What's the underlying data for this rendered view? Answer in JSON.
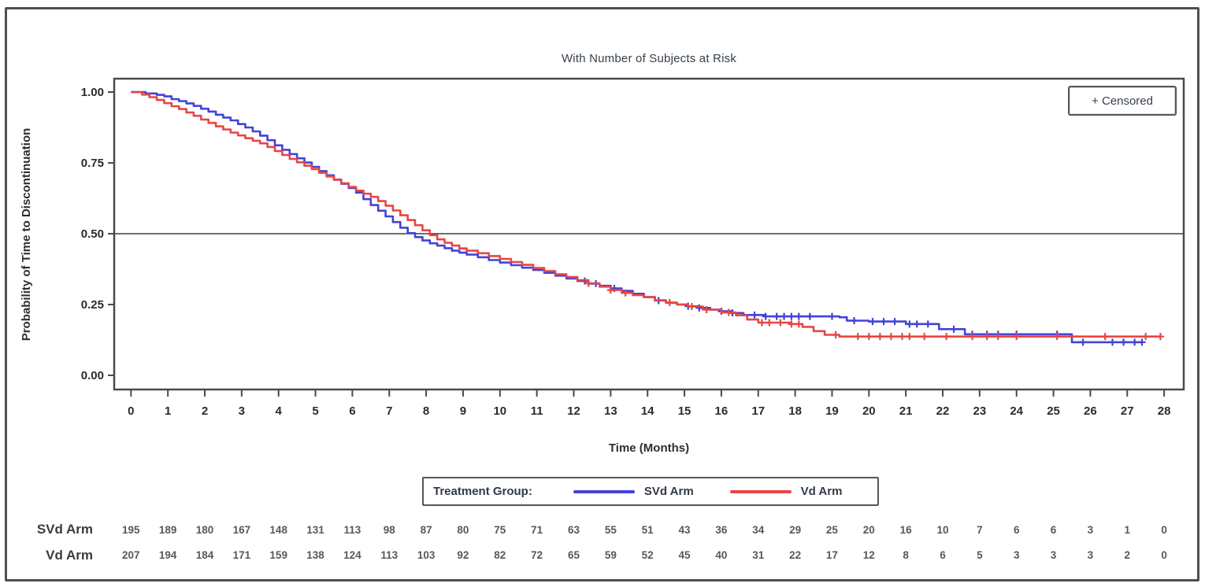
{
  "title": "With Number of Subjects at Risk",
  "censored_label": "+ Censored",
  "legend": {
    "label": "Treatment Group:",
    "entries": [
      {
        "name": "SVd Arm",
        "color": "#4343d6"
      },
      {
        "name": "Vd Arm",
        "color": "#e64646"
      }
    ]
  },
  "colors": {
    "svd_arm": "#4343d6",
    "vd_arm": "#e64646",
    "axis": "#4a4a4a",
    "tick_text": "#2b2b2b",
    "risk_text": "#585858"
  },
  "chart_data": {
    "type": "line",
    "subtype": "kaplan-meier-step",
    "title": "With Number of Subjects at Risk",
    "xlabel": "Time (Months)",
    "ylabel": "Probability of Time to Discontinuation",
    "xlim": [
      0,
      28
    ],
    "ylim": [
      0.0,
      1.0
    ],
    "grid": false,
    "reference_line_y": 0.5,
    "xticks": [
      0,
      1,
      2,
      3,
      4,
      5,
      6,
      7,
      8,
      9,
      10,
      11,
      12,
      13,
      14,
      15,
      16,
      17,
      18,
      19,
      20,
      21,
      22,
      23,
      24,
      25,
      26,
      27,
      28
    ],
    "yticks": [
      {
        "v": 0.0,
        "label": "0.00"
      },
      {
        "v": 0.25,
        "label": "0.25"
      },
      {
        "v": 0.5,
        "label": "0.50"
      },
      {
        "v": 0.75,
        "label": "0.75"
      },
      {
        "v": 1.0,
        "label": "1.00"
      }
    ],
    "legend_position": "bottom",
    "series": [
      {
        "name": "SVd Arm",
        "color": "#4343d6",
        "points": [
          [
            0,
            1
          ],
          [
            0.4,
            0.995
          ],
          [
            0.7,
            0.99
          ],
          [
            0.9,
            0.985
          ],
          [
            1.1,
            0.975
          ],
          [
            1.3,
            0.968
          ],
          [
            1.5,
            0.96
          ],
          [
            1.7,
            0.951
          ],
          [
            1.9,
            0.941
          ],
          [
            2.1,
            0.931
          ],
          [
            2.3,
            0.92
          ],
          [
            2.5,
            0.91
          ],
          [
            2.7,
            0.9
          ],
          [
            2.9,
            0.887
          ],
          [
            3.1,
            0.875
          ],
          [
            3.3,
            0.861
          ],
          [
            3.5,
            0.846
          ],
          [
            3.7,
            0.83
          ],
          [
            3.9,
            0.812
          ],
          [
            4.1,
            0.796
          ],
          [
            4.3,
            0.781
          ],
          [
            4.5,
            0.766
          ],
          [
            4.7,
            0.751
          ],
          [
            4.9,
            0.736
          ],
          [
            5.1,
            0.721
          ],
          [
            5.3,
            0.706
          ],
          [
            5.5,
            0.691
          ],
          [
            5.7,
            0.676
          ],
          [
            5.9,
            0.661
          ],
          [
            6.1,
            0.645
          ],
          [
            6.3,
            0.622
          ],
          [
            6.5,
            0.601
          ],
          [
            6.7,
            0.581
          ],
          [
            6.9,
            0.561
          ],
          [
            7.1,
            0.541
          ],
          [
            7.3,
            0.521
          ],
          [
            7.5,
            0.502
          ],
          [
            7.7,
            0.488
          ],
          [
            7.9,
            0.476
          ],
          [
            8.1,
            0.466
          ],
          [
            8.3,
            0.458
          ],
          [
            8.5,
            0.449
          ],
          [
            8.7,
            0.44
          ],
          [
            8.9,
            0.433
          ],
          [
            9.1,
            0.426
          ],
          [
            9.4,
            0.417
          ],
          [
            9.7,
            0.407
          ],
          [
            10,
            0.398
          ],
          [
            10.3,
            0.389
          ],
          [
            10.6,
            0.38
          ],
          [
            10.9,
            0.372
          ],
          [
            11.2,
            0.362
          ],
          [
            11.5,
            0.352
          ],
          [
            11.8,
            0.342
          ],
          [
            12.1,
            0.333
          ],
          [
            12.4,
            0.324
          ],
          [
            12.7,
            0.316
          ],
          [
            13,
            0.307
          ],
          [
            13.3,
            0.298
          ],
          [
            13.6,
            0.288
          ],
          [
            13.9,
            0.276
          ],
          [
            14.2,
            0.264
          ],
          [
            14.5,
            0.256
          ],
          [
            14.8,
            0.25
          ],
          [
            15.1,
            0.244
          ],
          [
            15.4,
            0.238
          ],
          [
            15.7,
            0.232
          ],
          [
            16,
            0.226
          ],
          [
            16.3,
            0.22
          ],
          [
            16.6,
            0.213
          ],
          [
            17.2,
            0.208
          ],
          [
            19.2,
            0.205
          ],
          [
            19.4,
            0.193
          ],
          [
            20,
            0.19
          ],
          [
            21,
            0.181
          ],
          [
            21.9,
            0.163
          ],
          [
            22.6,
            0.145
          ],
          [
            25.4,
            0.145
          ],
          [
            25.5,
            0.117
          ],
          [
            27.4,
            0.117
          ]
        ],
        "censor_times": [
          12.3,
          12.6,
          13.1,
          14.3,
          15.1,
          15.4,
          16.0,
          16.3,
          16.9,
          17.2,
          17.5,
          17.7,
          17.9,
          18.1,
          18.4,
          19.0,
          19.6,
          20.1,
          20.4,
          20.7,
          21.1,
          21.3,
          21.6,
          22.3,
          22.8,
          23.2,
          23.5,
          24.0,
          25.1,
          25.8,
          26.6,
          26.9,
          27.2,
          27.4
        ]
      },
      {
        "name": "Vd Arm",
        "color": "#e64646",
        "points": [
          [
            0,
            1
          ],
          [
            0.3,
            0.991
          ],
          [
            0.5,
            0.982
          ],
          [
            0.7,
            0.972
          ],
          [
            0.9,
            0.961
          ],
          [
            1.1,
            0.95
          ],
          [
            1.3,
            0.94
          ],
          [
            1.5,
            0.928
          ],
          [
            1.7,
            0.916
          ],
          [
            1.9,
            0.903
          ],
          [
            2.1,
            0.891
          ],
          [
            2.3,
            0.879
          ],
          [
            2.5,
            0.868
          ],
          [
            2.7,
            0.857
          ],
          [
            2.9,
            0.847
          ],
          [
            3.1,
            0.837
          ],
          [
            3.3,
            0.828
          ],
          [
            3.5,
            0.819
          ],
          [
            3.7,
            0.806
          ],
          [
            3.9,
            0.792
          ],
          [
            4.1,
            0.778
          ],
          [
            4.3,
            0.764
          ],
          [
            4.5,
            0.752
          ],
          [
            4.7,
            0.74
          ],
          [
            4.9,
            0.728
          ],
          [
            5.1,
            0.715
          ],
          [
            5.3,
            0.702
          ],
          [
            5.5,
            0.69
          ],
          [
            5.7,
            0.678
          ],
          [
            5.9,
            0.665
          ],
          [
            6.1,
            0.652
          ],
          [
            6.3,
            0.641
          ],
          [
            6.5,
            0.63
          ],
          [
            6.7,
            0.615
          ],
          [
            6.9,
            0.599
          ],
          [
            7.1,
            0.582
          ],
          [
            7.3,
            0.565
          ],
          [
            7.5,
            0.548
          ],
          [
            7.7,
            0.53
          ],
          [
            7.9,
            0.512
          ],
          [
            8.1,
            0.495
          ],
          [
            8.3,
            0.48
          ],
          [
            8.5,
            0.468
          ],
          [
            8.7,
            0.458
          ],
          [
            8.9,
            0.448
          ],
          [
            9.1,
            0.44
          ],
          [
            9.4,
            0.431
          ],
          [
            9.7,
            0.421
          ],
          [
            10,
            0.411
          ],
          [
            10.3,
            0.4
          ],
          [
            10.6,
            0.39
          ],
          [
            10.9,
            0.379
          ],
          [
            11.2,
            0.368
          ],
          [
            11.5,
            0.357
          ],
          [
            11.8,
            0.347
          ],
          [
            12.1,
            0.336
          ],
          [
            12.4,
            0.325
          ],
          [
            12.7,
            0.313
          ],
          [
            13,
            0.301
          ],
          [
            13.3,
            0.291
          ],
          [
            13.6,
            0.283
          ],
          [
            13.9,
            0.276
          ],
          [
            14.2,
            0.265
          ],
          [
            14.5,
            0.257
          ],
          [
            14.8,
            0.25
          ],
          [
            15.1,
            0.243
          ],
          [
            15.5,
            0.232
          ],
          [
            16,
            0.222
          ],
          [
            16.4,
            0.212
          ],
          [
            16.7,
            0.197
          ],
          [
            17,
            0.186
          ],
          [
            17.9,
            0.181
          ],
          [
            18.2,
            0.171
          ],
          [
            18.5,
            0.156
          ],
          [
            18.8,
            0.143
          ],
          [
            19.2,
            0.137
          ],
          [
            27.9,
            0.137
          ]
        ],
        "censor_times": [
          12.4,
          13.0,
          13.4,
          14.6,
          15.2,
          15.6,
          16.2,
          17.1,
          17.3,
          17.6,
          17.9,
          18.1,
          19.1,
          19.7,
          20.0,
          20.3,
          20.6,
          20.9,
          21.1,
          21.5,
          22.1,
          22.8,
          23.2,
          23.5,
          24.0,
          25.1,
          26.4,
          27.5,
          27.9
        ]
      }
    ],
    "risk_table": {
      "rows": [
        {
          "label": "SVd Arm",
          "counts": [
            195,
            189,
            180,
            167,
            148,
            131,
            113,
            98,
            87,
            80,
            75,
            71,
            63,
            55,
            51,
            43,
            36,
            34,
            29,
            25,
            20,
            16,
            10,
            7,
            6,
            6,
            3,
            1,
            0
          ]
        },
        {
          "label": "Vd Arm",
          "counts": [
            207,
            194,
            184,
            171,
            159,
            138,
            124,
            113,
            103,
            92,
            82,
            72,
            65,
            59,
            52,
            45,
            40,
            31,
            22,
            17,
            12,
            8,
            6,
            5,
            3,
            3,
            3,
            2,
            0
          ]
        }
      ]
    }
  }
}
